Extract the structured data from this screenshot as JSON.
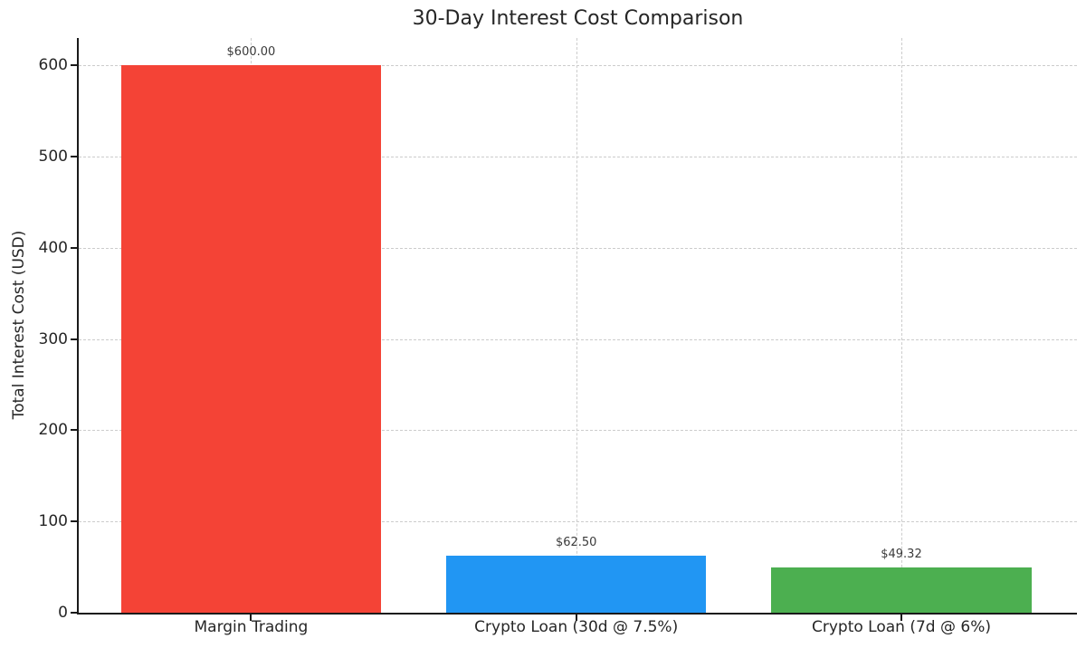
{
  "chart_data": {
    "type": "bar",
    "title": "30-Day Interest Cost Comparison",
    "xlabel": "",
    "ylabel": "Total Interest Cost (USD)",
    "categories": [
      "Margin Trading",
      "Crypto Loan (30d @ 7.5%)",
      "Crypto Loan (7d @ 6%)"
    ],
    "values": [
      600.0,
      62.5,
      49.32
    ],
    "value_labels": [
      "$600.00",
      "$62.50",
      "$49.32"
    ],
    "bar_colors": [
      "#f44336",
      "#2196f3",
      "#4caf50"
    ],
    "yticks": [
      0,
      100,
      200,
      300,
      400,
      500,
      600
    ],
    "ytick_labels": [
      "0",
      "100",
      "200",
      "300",
      "400",
      "500",
      "600"
    ],
    "ylim": [
      0,
      630
    ],
    "xlim": [
      -0.53,
      2.54
    ],
    "bar_width": 0.8,
    "grid": "dashed, horizontal and vertical",
    "legend_position": "none",
    "background_color": "#ffffff",
    "text_color": "#262626",
    "grid_color": "#cccccc",
    "spine_color": "#1a1a1a"
  }
}
